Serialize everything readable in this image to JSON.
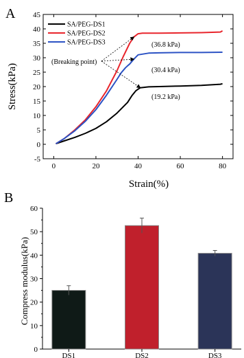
{
  "panels": {
    "a": {
      "letter": "A"
    },
    "b": {
      "letter": "B"
    }
  },
  "chart_data": [
    {
      "type": "line",
      "xlabel": "Strain(%)",
      "ylabel": "Stress(kPa)",
      "xlim": [
        -5,
        85
      ],
      "ylim": [
        -5,
        45
      ],
      "x_ticks": [
        0,
        20,
        40,
        60,
        80
      ],
      "y_ticks": [
        -5,
        0,
        5,
        10,
        15,
        20,
        25,
        30,
        35,
        40,
        45
      ],
      "grid": false,
      "legend_position": "top-left",
      "series": [
        {
          "name": "SA/PEG-DS1",
          "color": "#000000",
          "x": [
            1,
            5,
            10,
            15,
            20,
            25,
            30,
            35,
            37,
            39,
            41,
            45,
            50,
            60,
            70,
            79,
            80
          ],
          "y": [
            0.2,
            1.2,
            2.4,
            3.8,
            5.5,
            7.8,
            10.8,
            14.5,
            16.8,
            18.6,
            19.6,
            19.9,
            20.0,
            20.2,
            20.4,
            20.8,
            21.0
          ]
        },
        {
          "name": "SA/PEG-DS2",
          "color": "#e8242b",
          "x": [
            1,
            5,
            10,
            15,
            20,
            25,
            30,
            33,
            36,
            38,
            40,
            42,
            50,
            60,
            70,
            79,
            80
          ],
          "y": [
            0.2,
            2.0,
            5.0,
            8.5,
            13.0,
            18.5,
            25.5,
            30.5,
            35.0,
            37.2,
            38.3,
            38.5,
            38.5,
            38.6,
            38.7,
            38.9,
            39.3
          ]
        },
        {
          "name": "SA/PEG-DS3",
          "color": "#2b52c4",
          "x": [
            1,
            5,
            10,
            15,
            20,
            25,
            30,
            32,
            34,
            35,
            36,
            38,
            40,
            45,
            50,
            60,
            70,
            80
          ],
          "y": [
            0.2,
            2.0,
            4.7,
            8.0,
            12.0,
            17.0,
            22.5,
            24.8,
            26.5,
            27.2,
            27.8,
            29.5,
            31.0,
            31.6,
            31.7,
            31.8,
            31.8,
            31.9
          ]
        }
      ],
      "annotations": [
        {
          "text": "(36.8 kPa)",
          "target": {
            "x": 40,
            "y": 38.3
          }
        },
        {
          "text": "(30.4 kPa)",
          "target": {
            "x": 40,
            "y": 31.0
          }
        },
        {
          "text": "(19.2 kPa)",
          "target": {
            "x": 41,
            "y": 19.6
          }
        },
        {
          "text": "(Breaking point)",
          "points_to": [
            {
              "x": 38,
              "y": 37.2
            },
            {
              "x": 38,
              "y": 29.5
            },
            {
              "x": 41,
              "y": 19.6
            }
          ]
        }
      ]
    },
    {
      "type": "bar",
      "categories": [
        "DS1",
        "DS2",
        "DS3"
      ],
      "values": [
        25.0,
        52.6,
        40.8
      ],
      "errors": [
        2.0,
        3.2,
        1.2
      ],
      "colors": [
        "#0f1a17",
        "#c0202c",
        "#2b3458"
      ],
      "ylabel": "Compress modulus(kPa)",
      "xlabel": "",
      "ylim": [
        0,
        60
      ],
      "y_ticks": [
        0,
        10,
        20,
        30,
        40,
        50,
        60
      ],
      "grid": false
    }
  ]
}
